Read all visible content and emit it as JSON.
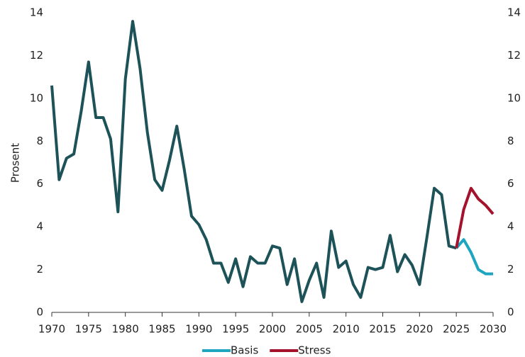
{
  "chart_data": {
    "type": "line",
    "y_label": "Prosent",
    "x": [
      1970,
      1971,
      1972,
      1973,
      1974,
      1975,
      1976,
      1977,
      1978,
      1979,
      1980,
      1981,
      1982,
      1983,
      1984,
      1985,
      1986,
      1987,
      1988,
      1989,
      1990,
      1991,
      1992,
      1993,
      1994,
      1995,
      1996,
      1997,
      1998,
      1999,
      2000,
      2001,
      2002,
      2003,
      2004,
      2005,
      2006,
      2007,
      2008,
      2009,
      2010,
      2011,
      2012,
      2013,
      2014,
      2015,
      2016,
      2017,
      2018,
      2019,
      2020,
      2021,
      2022,
      2023,
      2024,
      2025,
      2026,
      2027,
      2028,
      2029,
      2030
    ],
    "series": [
      {
        "color": "#1d5358",
        "values": [
          10.6,
          6.2,
          7.2,
          7.4,
          9.4,
          11.7,
          9.1,
          9.1,
          8.1,
          4.7,
          10.9,
          13.6,
          11.4,
          8.4,
          6.2,
          5.7,
          7.1,
          8.7,
          6.7,
          4.5,
          4.1,
          3.4,
          2.3,
          2.3,
          1.4,
          2.5,
          1.2,
          2.6,
          2.3,
          2.3,
          3.1,
          3.0,
          1.3,
          2.5,
          0.5,
          1.5,
          2.3,
          0.7,
          3.8,
          2.1,
          2.4,
          1.3,
          0.7,
          2.1,
          2.0,
          2.1,
          3.6,
          1.9,
          2.7,
          2.2,
          1.3,
          3.5,
          5.8,
          5.5,
          3.1,
          3.0,
          null,
          null,
          null,
          null,
          null
        ]
      },
      {
        "name": "Basis",
        "color": "#1ea5c0",
        "values": [
          null,
          null,
          null,
          null,
          null,
          null,
          null,
          null,
          null,
          null,
          null,
          null,
          null,
          null,
          null,
          null,
          null,
          null,
          null,
          null,
          null,
          null,
          null,
          null,
          null,
          null,
          null,
          null,
          null,
          null,
          null,
          null,
          null,
          null,
          null,
          null,
          null,
          null,
          null,
          null,
          null,
          null,
          null,
          null,
          null,
          null,
          null,
          null,
          null,
          null,
          null,
          null,
          null,
          null,
          null,
          3.0,
          3.4,
          2.8,
          2.0,
          1.8,
          1.8
        ]
      },
      {
        "name": "Stress",
        "color": "#a4122c",
        "values": [
          null,
          null,
          null,
          null,
          null,
          null,
          null,
          null,
          null,
          null,
          null,
          null,
          null,
          null,
          null,
          null,
          null,
          null,
          null,
          null,
          null,
          null,
          null,
          null,
          null,
          null,
          null,
          null,
          null,
          null,
          null,
          null,
          null,
          null,
          null,
          null,
          null,
          null,
          null,
          null,
          null,
          null,
          null,
          null,
          null,
          null,
          null,
          null,
          null,
          null,
          null,
          null,
          null,
          null,
          null,
          3.0,
          4.8,
          5.8,
          5.3,
          5.0,
          4.6
        ]
      }
    ],
    "xlim": [
      1970,
      2030
    ],
    "xticks": [
      1970,
      1975,
      1980,
      1985,
      1990,
      1995,
      2000,
      2005,
      2010,
      2015,
      2020,
      2025,
      2030
    ],
    "ylim": [
      0,
      14
    ],
    "yticks": [
      0,
      2,
      4,
      6,
      8,
      10,
      12,
      14
    ],
    "y2lim": [
      0,
      14
    ],
    "y2ticks": [
      0,
      2,
      4,
      6,
      8,
      10,
      12,
      14
    ],
    "legend": "bottom"
  }
}
